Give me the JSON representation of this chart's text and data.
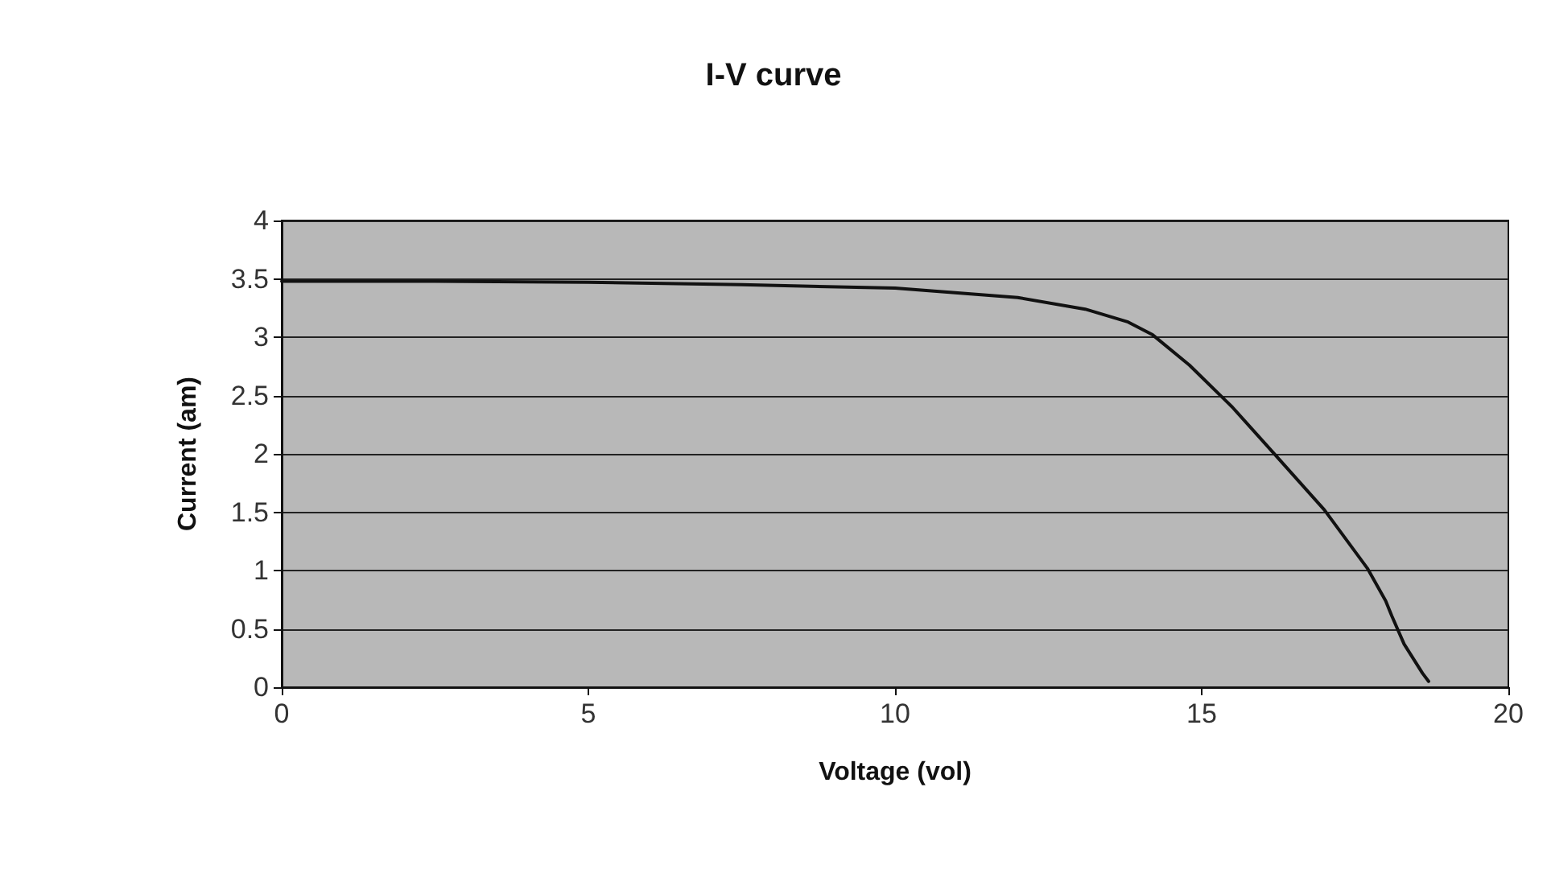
{
  "chart_data": {
    "type": "line",
    "title": "I-V curve",
    "xlabel": "Voltage (vol)",
    "ylabel": "Current (am)",
    "series": [
      {
        "color": "#111111",
        "x": [
          0,
          2.5,
          5,
          7.5,
          10,
          12.0,
          13.1,
          13.8,
          14.2,
          14.8,
          15.5,
          16.2,
          17.0,
          17.7,
          18.0,
          18.1,
          18.3,
          18.6,
          18.7
        ],
        "values": [
          3.48,
          3.48,
          3.47,
          3.45,
          3.42,
          3.34,
          3.24,
          3.13,
          3.02,
          2.76,
          2.4,
          1.99,
          1.52,
          1.02,
          0.74,
          0.61,
          0.37,
          0.12,
          0.05
        ]
      }
    ],
    "xlim": [
      0,
      20
    ],
    "xticks": [
      0,
      5,
      10,
      15,
      20
    ],
    "ylim": [
      0,
      4
    ],
    "yticks": [
      0,
      0.5,
      1,
      1.5,
      2,
      2.5,
      3,
      3.5,
      4
    ],
    "grid": "y",
    "marker": "none",
    "line_style": "solid"
  }
}
